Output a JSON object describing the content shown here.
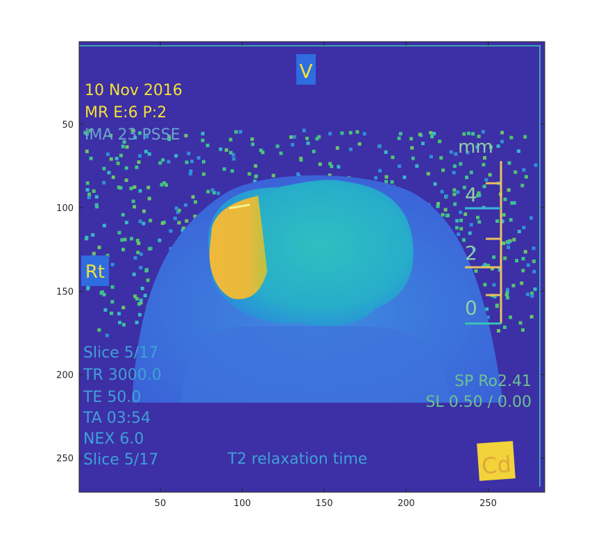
{
  "figure": {
    "x_axis": {
      "range": [
        1,
        284
      ],
      "ticks": [
        50,
        100,
        150,
        200,
        250
      ]
    },
    "y_axis": {
      "range": [
        1,
        270
      ],
      "ticks": [
        50,
        100,
        150,
        200,
        250
      ]
    },
    "colormap": "parula",
    "colors": {
      "background": "#3d2fa6",
      "frame_line": "#37c5b4",
      "yellow_text": "#f2e236",
      "cyan_text": "#3fa1d7",
      "ruler": "#e9c25f"
    }
  },
  "overlay": {
    "orientation_top": "V",
    "orientation_left": "Rt",
    "orientation_bottom_right": "Cd",
    "header_lines": [
      "10 Nov 2016",
      "MR E:6 P:2",
      "IMA 23 PSSE"
    ],
    "scale_unit": "mm",
    "scale_labels": [
      "4",
      "2",
      "0"
    ],
    "acquisition_lines": [
      "Slice 5/17",
      "TR 3000.0",
      "TE 50.0",
      "TA 03:54",
      "NEX 6.0",
      "Slice 5/17"
    ],
    "map_label": "T2 relaxation time",
    "position_lines": [
      "SP Ro2.41",
      "SL 0.50 / 0.00"
    ]
  }
}
